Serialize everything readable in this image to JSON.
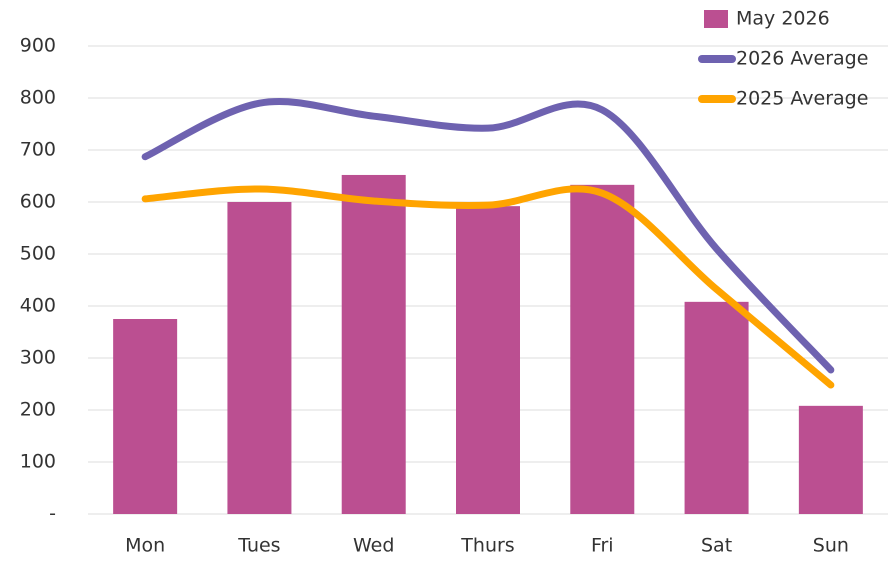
{
  "chart_data": {
    "type": "bar",
    "categories": [
      "Mon",
      "Tues",
      "Wed",
      "Thurs",
      "Fri",
      "Sat",
      "Sun"
    ],
    "series": [
      {
        "name": "May 2026",
        "type": "bar",
        "color": "#bb4f91",
        "values": [
          375,
          600,
          652,
          592,
          633,
          408,
          208
        ]
      },
      {
        "name": "2026 Average",
        "type": "line",
        "color": "#6e62b0",
        "values": [
          687,
          790,
          765,
          742,
          777,
          510,
          277
        ]
      },
      {
        "name": "2025 Average",
        "type": "line",
        "color": "#ffa400",
        "values": [
          606,
          625,
          602,
          594,
          617,
          432,
          248
        ]
      }
    ],
    "ylim": [
      0,
      900
    ],
    "yticks": [
      {
        "value": 0,
        "label": "-"
      },
      100,
      200,
      300,
      400,
      500,
      600,
      700,
      800,
      900
    ],
    "grid": true,
    "legend": "top-right"
  }
}
